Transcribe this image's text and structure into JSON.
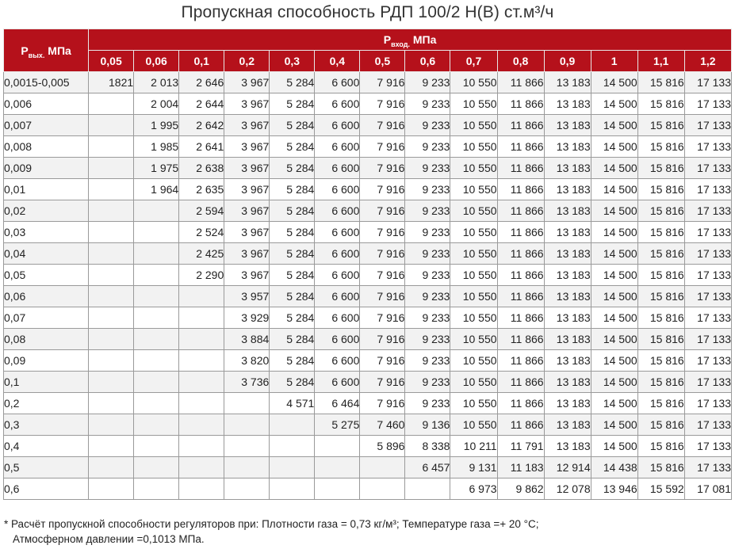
{
  "title": "Пропускная способность РДП 100/2 Н(В) ст.м³/ч",
  "header": {
    "outlet": {
      "symbol": "P",
      "sub": "вых.",
      "unit": "МПа"
    },
    "inlet": {
      "symbol": "P",
      "sub": "вход.",
      "unit": "МПа"
    }
  },
  "columns": [
    "0,05",
    "0,06",
    "0,1",
    "0,2",
    "0,3",
    "0,4",
    "0,5",
    "0,6",
    "0,7",
    "0,8",
    "0,9",
    "1",
    "1,1",
    "1,2"
  ],
  "rows": [
    {
      "label": "0,0015-0,005",
      "values": [
        "1821",
        "2 013",
        "2 646",
        "3 967",
        "5 284",
        "6 600",
        "7 916",
        "9 233",
        "10 550",
        "11 866",
        "13 183",
        "14 500",
        "15 816",
        "17 133"
      ]
    },
    {
      "label": "0,006",
      "values": [
        "",
        "2 004",
        "2 644",
        "3 967",
        "5 284",
        "6 600",
        "7 916",
        "9 233",
        "10 550",
        "11 866",
        "13 183",
        "14 500",
        "15 816",
        "17 133"
      ]
    },
    {
      "label": "0,007",
      "values": [
        "",
        "1 995",
        "2 642",
        "3 967",
        "5 284",
        "6 600",
        "7 916",
        "9 233",
        "10 550",
        "11 866",
        "13 183",
        "14 500",
        "15 816",
        "17 133"
      ]
    },
    {
      "label": "0,008",
      "values": [
        "",
        "1 985",
        "2 641",
        "3 967",
        "5 284",
        "6 600",
        "7 916",
        "9 233",
        "10 550",
        "11 866",
        "13 183",
        "14 500",
        "15 816",
        "17 133"
      ]
    },
    {
      "label": "0,009",
      "values": [
        "",
        "1 975",
        "2 638",
        "3 967",
        "5 284",
        "6 600",
        "7 916",
        "9 233",
        "10 550",
        "11 866",
        "13 183",
        "14 500",
        "15 816",
        "17 133"
      ]
    },
    {
      "label": "0,01",
      "values": [
        "",
        "1 964",
        "2 635",
        "3 967",
        "5 284",
        "6 600",
        "7 916",
        "9 233",
        "10 550",
        "11 866",
        "13 183",
        "14 500",
        "15 816",
        "17 133"
      ]
    },
    {
      "label": "0,02",
      "values": [
        "",
        "",
        "2 594",
        "3 967",
        "5 284",
        "6 600",
        "7 916",
        "9 233",
        "10 550",
        "11 866",
        "13 183",
        "14 500",
        "15 816",
        "17 133"
      ]
    },
    {
      "label": "0,03",
      "values": [
        "",
        "",
        "2 524",
        "3 967",
        "5 284",
        "6 600",
        "7 916",
        "9 233",
        "10 550",
        "11 866",
        "13 183",
        "14 500",
        "15 816",
        "17 133"
      ]
    },
    {
      "label": "0,04",
      "values": [
        "",
        "",
        "2 425",
        "3 967",
        "5 284",
        "6 600",
        "7 916",
        "9 233",
        "10 550",
        "11 866",
        "13 183",
        "14 500",
        "15 816",
        "17 133"
      ]
    },
    {
      "label": "0,05",
      "values": [
        "",
        "",
        "2 290",
        "3 967",
        "5 284",
        "6 600",
        "7 916",
        "9 233",
        "10 550",
        "11 866",
        "13 183",
        "14 500",
        "15 816",
        "17 133"
      ]
    },
    {
      "label": "0,06",
      "values": [
        "",
        "",
        "",
        "3 957",
        "5 284",
        "6 600",
        "7 916",
        "9 233",
        "10 550",
        "11 866",
        "13 183",
        "14 500",
        "15 816",
        "17 133"
      ]
    },
    {
      "label": "0,07",
      "values": [
        "",
        "",
        "",
        "3 929",
        "5 284",
        "6 600",
        "7 916",
        "9 233",
        "10 550",
        "11 866",
        "13 183",
        "14 500",
        "15 816",
        "17 133"
      ]
    },
    {
      "label": "0,08",
      "values": [
        "",
        "",
        "",
        "3 884",
        "5 284",
        "6 600",
        "7 916",
        "9 233",
        "10 550",
        "11 866",
        "13 183",
        "14 500",
        "15 816",
        "17 133"
      ]
    },
    {
      "label": "0,09",
      "values": [
        "",
        "",
        "",
        "3 820",
        "5 284",
        "6 600",
        "7 916",
        "9 233",
        "10 550",
        "11 866",
        "13 183",
        "14 500",
        "15 816",
        "17 133"
      ]
    },
    {
      "label": "0,1",
      "values": [
        "",
        "",
        "",
        "3 736",
        "5 284",
        "6 600",
        "7 916",
        "9 233",
        "10 550",
        "11 866",
        "13 183",
        "14 500",
        "15 816",
        "17 133"
      ]
    },
    {
      "label": "0,2",
      "values": [
        "",
        "",
        "",
        "",
        "4 571",
        "6 464",
        "7 916",
        "9 233",
        "10 550",
        "11 866",
        "13 183",
        "14 500",
        "15 816",
        "17 133"
      ]
    },
    {
      "label": "0,3",
      "values": [
        "",
        "",
        "",
        "",
        "",
        "5 275",
        "7 460",
        "9 136",
        "10 550",
        "11 866",
        "13 183",
        "14 500",
        "15 816",
        "17 133"
      ]
    },
    {
      "label": "0,4",
      "values": [
        "",
        "",
        "",
        "",
        "",
        "",
        "5 896",
        "8 338",
        "10 211",
        "11 791",
        "13 183",
        "14 500",
        "15 816",
        "17 133"
      ]
    },
    {
      "label": "0,5",
      "values": [
        "",
        "",
        "",
        "",
        "",
        "",
        "",
        "6 457",
        "9 131",
        "11 183",
        "12 914",
        "14 438",
        "15 816",
        "17 133"
      ]
    },
    {
      "label": "0,6",
      "values": [
        "",
        "",
        "",
        "",
        "",
        "",
        "",
        "",
        "6 973",
        "9 862",
        "12 078",
        "13 946",
        "15 592",
        "17 081"
      ]
    }
  ],
  "footnote": {
    "line1": "* Расчёт пропускной способности регуляторов при: Плотности газа = 0,73 кг/м³; Температуре газа =+ 20 °С;",
    "line2": "Атмосферном давлении =0,1013 МПа."
  }
}
